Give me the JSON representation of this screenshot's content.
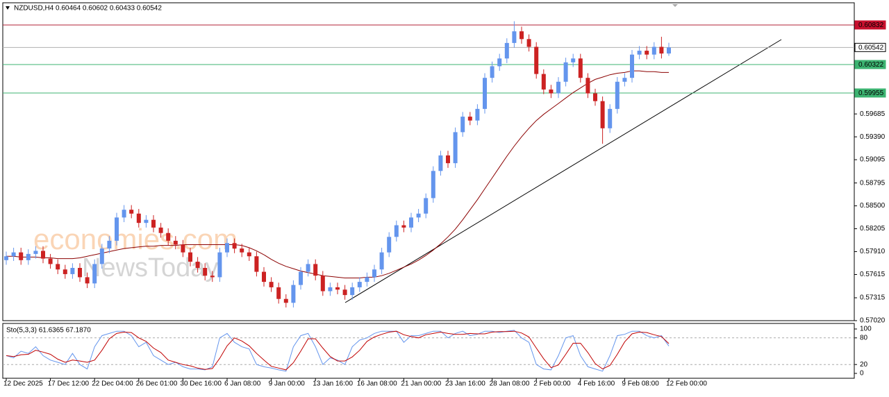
{
  "chart_data": {
    "type": "candlestick",
    "title": "NZDUSD,H4  0.60464 0.60602 0.60433 0.60542",
    "watermark": [
      "economies.com",
      "NewsToday"
    ],
    "up_color": "#6495ed",
    "down_color": "#cc2222",
    "categories": [
      "12 Dec 2025",
      null,
      null,
      null,
      null,
      null,
      "17 Dec 12:00",
      null,
      null,
      null,
      null,
      null,
      "22 Dec 04:00",
      null,
      null,
      null,
      null,
      null,
      "26 Dec 01:00",
      null,
      null,
      null,
      null,
      null,
      "30 Dec 16:00",
      null,
      null,
      null,
      null,
      null,
      "6 Jan 08:00",
      null,
      null,
      null,
      null,
      null,
      "9 Jan 00:00",
      null,
      null,
      null,
      null,
      null,
      "13 Jan 16:00",
      null,
      null,
      null,
      null,
      null,
      "16 Jan 08:00",
      null,
      null,
      null,
      null,
      null,
      "21 Jan 00:00",
      null,
      null,
      null,
      null,
      null,
      "23 Jan 16:00",
      null,
      null,
      null,
      null,
      null,
      "28 Jan 08:00",
      null,
      null,
      null,
      null,
      null,
      "2 Feb 00:00",
      null,
      null,
      null,
      null,
      null,
      "4 Feb 16:00",
      null,
      null,
      null,
      null,
      null,
      "9 Feb 08:00",
      null,
      null,
      null,
      null,
      null,
      "12 Feb 00:00"
    ],
    "open": [
      0.578,
      0.5785,
      0.579,
      0.578,
      0.5788,
      0.5792,
      0.5782,
      0.5775,
      0.5768,
      0.5762,
      0.577,
      0.5758,
      0.575,
      0.5775,
      0.5795,
      0.5805,
      0.5835,
      0.5845,
      0.584,
      0.5828,
      0.5832,
      0.5822,
      0.5815,
      0.5805,
      0.58,
      0.579,
      0.5778,
      0.577,
      0.576,
      0.5758,
      0.579,
      0.5802,
      0.5795,
      0.579,
      0.5785,
      0.5765,
      0.5752,
      0.5745,
      0.573,
      0.5725,
      0.5748,
      0.5765,
      0.5775,
      0.576,
      0.574,
      0.5745,
      0.5742,
      0.5735,
      0.5745,
      0.5752,
      0.5758,
      0.5768,
      0.579,
      0.581,
      0.5825,
      0.5822,
      0.5835,
      0.584,
      0.586,
      0.5895,
      0.5915,
      0.5905,
      0.5945,
      0.5965,
      0.596,
      0.5975,
      0.6015,
      0.603,
      0.604,
      0.606,
      0.6075,
      0.6065,
      0.6055,
      0.602,
      0.6,
      0.5995,
      0.601,
      0.6035,
      0.604,
      0.6015,
      0.5995,
      0.5985,
      0.595,
      0.5975,
      0.601,
      0.6015,
      0.6045,
      0.605,
      0.6045,
      0.6055,
      0.60464
    ],
    "high": [
      0.5791,
      0.5796,
      0.5796,
      0.5794,
      0.5798,
      0.5798,
      0.5788,
      0.5781,
      0.5774,
      0.5776,
      0.5776,
      0.5764,
      0.5781,
      0.5801,
      0.5811,
      0.5841,
      0.5851,
      0.5851,
      0.5846,
      0.5838,
      0.5838,
      0.5828,
      0.5821,
      0.5811,
      0.5806,
      0.5796,
      0.5784,
      0.5776,
      0.5766,
      0.5796,
      0.5808,
      0.5808,
      0.5801,
      0.5796,
      0.5791,
      0.5771,
      0.5758,
      0.5751,
      0.5736,
      0.5754,
      0.5771,
      0.5781,
      0.5781,
      0.5766,
      0.5751,
      0.5751,
      0.5748,
      0.5751,
      0.5758,
      0.5764,
      0.5774,
      0.5796,
      0.5816,
      0.5831,
      0.5831,
      0.5841,
      0.5846,
      0.5866,
      0.5901,
      0.5921,
      0.5921,
      0.5951,
      0.5971,
      0.5971,
      0.5981,
      0.6021,
      0.6036,
      0.6046,
      0.6066,
      0.6088,
      0.6081,
      0.6071,
      0.6061,
      0.6026,
      0.6006,
      0.6016,
      0.6041,
      0.6046,
      0.6046,
      0.6021,
      0.6001,
      0.5991,
      0.5981,
      0.6016,
      0.6021,
      0.6051,
      0.6056,
      0.6056,
      0.6061,
      0.6068,
      0.60602
    ],
    "low": [
      0.5774,
      0.5779,
      0.5774,
      0.5774,
      0.5782,
      0.5776,
      0.5769,
      0.5762,
      0.5756,
      0.5756,
      0.5752,
      0.5744,
      0.5744,
      0.5769,
      0.5789,
      0.5799,
      0.5829,
      0.5834,
      0.5822,
      0.5822,
      0.5816,
      0.5809,
      0.5799,
      0.5794,
      0.5784,
      0.5772,
      0.5764,
      0.5754,
      0.5752,
      0.5752,
      0.5784,
      0.5789,
      0.5784,
      0.5779,
      0.5759,
      0.5746,
      0.5739,
      0.5724,
      0.5719,
      0.5719,
      0.5742,
      0.5759,
      0.5754,
      0.5734,
      0.5734,
      0.5736,
      0.5729,
      0.5729,
      0.5739,
      0.5746,
      0.5752,
      0.5762,
      0.5784,
      0.5804,
      0.5816,
      0.5816,
      0.5829,
      0.5834,
      0.5854,
      0.5889,
      0.5899,
      0.5899,
      0.5939,
      0.5954,
      0.5954,
      0.5969,
      0.6009,
      0.6024,
      0.6034,
      0.6054,
      0.6059,
      0.6049,
      0.6014,
      0.5994,
      0.5989,
      0.5989,
      0.6004,
      0.6029,
      0.6009,
      0.5989,
      0.5979,
      0.593,
      0.5944,
      0.5969,
      0.6004,
      0.6009,
      0.6039,
      0.6039,
      0.6039,
      0.604,
      0.60433
    ],
    "close": [
      0.5785,
      0.579,
      0.578,
      0.5788,
      0.5792,
      0.5782,
      0.5775,
      0.5768,
      0.5762,
      0.577,
      0.5758,
      0.575,
      0.5775,
      0.5795,
      0.5805,
      0.5835,
      0.5845,
      0.584,
      0.5828,
      0.5832,
      0.5822,
      0.5815,
      0.5805,
      0.58,
      0.579,
      0.5778,
      0.577,
      0.576,
      0.5758,
      0.579,
      0.5802,
      0.5795,
      0.579,
      0.5785,
      0.5765,
      0.5752,
      0.5745,
      0.573,
      0.5725,
      0.5748,
      0.5765,
      0.5775,
      0.576,
      0.574,
      0.5745,
      0.5742,
      0.5735,
      0.5745,
      0.5752,
      0.5758,
      0.5768,
      0.579,
      0.581,
      0.5825,
      0.5822,
      0.5835,
      0.584,
      0.586,
      0.5895,
      0.5915,
      0.5905,
      0.5945,
      0.5965,
      0.596,
      0.5975,
      0.6015,
      0.603,
      0.604,
      0.606,
      0.6075,
      0.6065,
      0.6055,
      0.602,
      0.6,
      0.5995,
      0.601,
      0.6035,
      0.604,
      0.6015,
      0.5995,
      0.5985,
      0.595,
      0.5975,
      0.601,
      0.6015,
      0.6045,
      0.605,
      0.6045,
      0.6055,
      0.60464,
      0.60542
    ],
    "ma": {
      "color": "#8b0000",
      "values": [
        0.5785,
        0.5785,
        0.5784,
        0.5784,
        0.5784,
        0.5783,
        0.5783,
        0.5782,
        0.5782,
        0.5782,
        0.5783,
        0.5785,
        0.5787,
        0.5789,
        0.5791,
        0.5793,
        0.5795,
        0.5796,
        0.5797,
        0.5798,
        0.5798,
        0.5799,
        0.5799,
        0.5799,
        0.58,
        0.58,
        0.58,
        0.58,
        0.58,
        0.58,
        0.58,
        0.58,
        0.5799,
        0.5796,
        0.5792,
        0.5787,
        0.5781,
        0.5776,
        0.5772,
        0.5769,
        0.5766,
        0.5764,
        0.5762,
        0.576,
        0.5759,
        0.5758,
        0.5757,
        0.5757,
        0.5757,
        0.5758,
        0.5758,
        0.576,
        0.5763,
        0.5767,
        0.5771,
        0.5775,
        0.578,
        0.5786,
        0.5793,
        0.5801,
        0.581,
        0.582,
        0.5832,
        0.5845,
        0.5858,
        0.5872,
        0.5886,
        0.59,
        0.5914,
        0.5927,
        0.5939,
        0.595,
        0.596,
        0.5968,
        0.5975,
        0.5982,
        0.5989,
        0.5996,
        0.6002,
        0.6008,
        0.6013,
        0.6016,
        0.6019,
        0.6021,
        0.6022,
        0.6024,
        0.6024,
        0.6023,
        0.6023,
        0.6022,
        0.6022
      ]
    },
    "ylim": [
      0.5702,
      0.61118
    ],
    "yticks": [
      0.59685,
      {
        "value": 0.5939,
        "label": "0.59390"
      },
      0.59095,
      0.58795,
      {
        "value": 0.585,
        "label": "0.58500"
      },
      0.58205,
      {
        "value": 0.5791,
        "label": "0.57910"
      },
      0.57615,
      0.57315,
      {
        "value": 0.5702,
        "label": "0.57020"
      }
    ],
    "levels": [
      {
        "value": 0.60832,
        "color": "#b22234",
        "tag_fill": "#c8102e",
        "tag_text": "#ffffff"
      },
      {
        "value": 0.60542,
        "color": "#b0b0b0",
        "tag_fill": "#ffffff",
        "tag_text": "#000000"
      },
      {
        "value": 0.60322,
        "color": "#3cb371",
        "tag_fill": "#3cb371",
        "tag_text": "#ffffff"
      },
      {
        "value": 0.59955,
        "color": "#3cb371",
        "tag_fill": "#3cb371",
        "tag_text": "#ffffff"
      }
    ],
    "indicator": {
      "type": "stochastic",
      "label": "Sto(5,3,3) 61.6365 67.1870",
      "ylim": [
        0,
        100
      ],
      "yticks": [
        100,
        80,
        20,
        0
      ],
      "levels": [
        80,
        20
      ],
      "series": [
        {
          "color": "#6495ed",
          "values": [
            40,
            35,
            50,
            45,
            60,
            40,
            30,
            25,
            20,
            45,
            20,
            10,
            60,
            85,
            90,
            95,
            95,
            85,
            60,
            70,
            40,
            30,
            20,
            25,
            15,
            10,
            10,
            8,
            15,
            80,
            90,
            70,
            60,
            55,
            20,
            15,
            12,
            8,
            5,
            60,
            85,
            90,
            60,
            20,
            35,
            30,
            20,
            60,
            75,
            80,
            90,
            95,
            95,
            95,
            70,
            85,
            85,
            90,
            95,
            95,
            80,
            90,
            95,
            85,
            88,
            95,
            95,
            92,
            95,
            97,
            80,
            70,
            20,
            10,
            8,
            40,
            80,
            85,
            40,
            15,
            10,
            5,
            40,
            85,
            88,
            95,
            95,
            85,
            80,
            85,
            61.6365
          ]
        },
        {
          "color": "#c00000",
          "values": [
            40,
            38,
            42,
            43,
            52,
            48,
            43,
            32,
            25,
            30,
            28,
            25,
            30,
            52,
            78,
            90,
            93,
            92,
            80,
            72,
            57,
            47,
            30,
            25,
            20,
            17,
            12,
            9,
            11,
            34,
            62,
            80,
            73,
            62,
            45,
            30,
            16,
            12,
            8,
            24,
            50,
            78,
            78,
            57,
            38,
            28,
            28,
            37,
            52,
            72,
            82,
            88,
            93,
            95,
            87,
            83,
            80,
            87,
            90,
            93,
            90,
            88,
            88,
            90,
            89,
            89,
            93,
            94,
            94,
            95,
            91,
            82,
            57,
            33,
            13,
            19,
            43,
            68,
            68,
            47,
            22,
            10,
            18,
            43,
            71,
            89,
            93,
            92,
            87,
            83,
            67.187
          ]
        }
      ]
    }
  }
}
